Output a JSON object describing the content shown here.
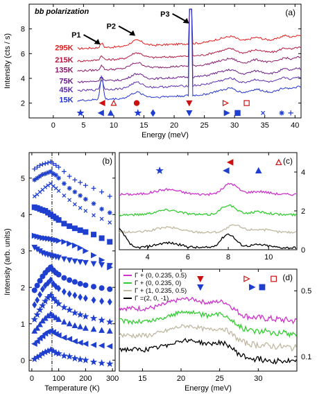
{
  "chart_data": [
    {
      "id": "a",
      "type": "line",
      "panel_label": "(a)",
      "title": "bb polarization",
      "xlabel": "Energy (meV)",
      "ylabel": "Intensity (cts / s)",
      "xlim": [
        -4,
        41
      ],
      "ylim": [
        0.8,
        10
      ],
      "xticks": [
        0,
        5,
        10,
        15,
        20,
        25,
        30,
        35,
        40
      ],
      "yticks": [
        2,
        4,
        6,
        8
      ],
      "series": [
        {
          "name": "295K",
          "color": "#e41a1c",
          "offset": 6.4
        },
        {
          "name": "215K",
          "color": "#b5163f",
          "offset": 5.4
        },
        {
          "name": "135K",
          "color": "#8a1a6a",
          "offset": 4.6
        },
        {
          "name": "75K",
          "color": "#6a1b8a",
          "offset": 3.7
        },
        {
          "name": "45K",
          "color": "#5a2bb0",
          "offset": 3.0
        },
        {
          "name": "15K",
          "color": "#2233cc",
          "offset": 2.2
        }
      ],
      "peaks": [
        {
          "label": "P1",
          "x": 8.0
        },
        {
          "label": "P2",
          "x": 13.8
        },
        {
          "label": "P3",
          "x": 22.7
        }
      ],
      "markers": [
        {
          "x": 4.5,
          "shape": "star",
          "color": "#1f3fcf",
          "filled": true
        },
        {
          "x": 7.9,
          "shape": "tri-left",
          "color": "#1f3fcf",
          "filled": true
        },
        {
          "x": 8.1,
          "shape": "tri-left",
          "color": "#cc1111",
          "filled": true
        },
        {
          "x": 9.5,
          "shape": "tri-up",
          "color": "#1f3fcf",
          "filled": true
        },
        {
          "x": 10.0,
          "shape": "tri-up",
          "color": "#cc1111",
          "filled": false
        },
        {
          "x": 13.8,
          "shape": "circle",
          "color": "#cc1111",
          "filled": true
        },
        {
          "x": 14.0,
          "shape": "plus-star",
          "color": "#1f3fcf",
          "filled": true
        },
        {
          "x": 16.5,
          "shape": "diamond",
          "color": "#1f3fcf",
          "filled": true
        },
        {
          "x": 22.5,
          "shape": "tri-down",
          "color": "#cc1111",
          "filled": true
        },
        {
          "x": 22.5,
          "shape": "tri-down",
          "color": "#1f3fcf",
          "filled": true
        },
        {
          "x": 28.5,
          "shape": "tri-right",
          "color": "#cc1111",
          "filled": false
        },
        {
          "x": 28.7,
          "shape": "tri-right",
          "color": "#1f3fcf",
          "filled": true
        },
        {
          "x": 30.5,
          "shape": "square",
          "color": "#1f3fcf",
          "filled": true
        },
        {
          "x": 32.0,
          "shape": "square",
          "color": "#cc1111",
          "filled": false
        },
        {
          "x": 34.7,
          "shape": "x",
          "color": "#1f3fcf",
          "filled": true
        },
        {
          "x": 37.8,
          "shape": "asterisk",
          "color": "#1f3fcf",
          "filled": true
        },
        {
          "x": 39.3,
          "shape": "plus",
          "color": "#1f3fcf",
          "filled": true
        }
      ]
    },
    {
      "id": "b",
      "type": "scatter",
      "panel_label": "(b)",
      "xlabel": "Temperature (K)",
      "ylabel": "Intensity (arb. units)",
      "xlim": [
        -10,
        310
      ],
      "ylim": [
        -0.3,
        5.7
      ],
      "xticks": [
        0,
        100,
        200,
        300
      ],
      "yticks": [
        0,
        1,
        2,
        3,
        4,
        5
      ],
      "vline_x": 75,
      "temperatures": [
        10,
        20,
        30,
        40,
        50,
        60,
        70,
        80,
        90,
        100,
        120,
        140,
        160,
        180,
        200,
        230,
        260,
        290
      ],
      "series": [
        {
          "marker": "star",
          "values": [
            0.03,
            0.08,
            0.12,
            0.18,
            0.22,
            0.25,
            0.28,
            0.25,
            0.2,
            0.18,
            0.12,
            0.1,
            0.05,
            0.02,
            0.0,
            -0.05,
            -0.08,
            -0.1
          ]
        },
        {
          "marker": "tri-left",
          "values": [
            0.45,
            0.52,
            0.6,
            0.66,
            0.73,
            0.78,
            0.8,
            0.77,
            0.72,
            0.68,
            0.62,
            0.58,
            0.52,
            0.48,
            0.45,
            0.42,
            0.4,
            0.38
          ]
        },
        {
          "marker": "tri-up",
          "values": [
            0.8,
            0.88,
            0.98,
            1.08,
            1.15,
            1.22,
            1.27,
            1.22,
            1.17,
            1.12,
            1.05,
            1.0,
            0.95,
            0.92,
            0.88,
            0.85,
            0.82,
            0.8
          ]
        },
        {
          "marker": "plus-star",
          "values": [
            1.12,
            1.25,
            1.38,
            1.5,
            1.62,
            1.72,
            1.78,
            1.7,
            1.62,
            1.55,
            1.45,
            1.38,
            1.3,
            1.25,
            1.2,
            1.15,
            1.1,
            1.05
          ]
        },
        {
          "marker": "diamond",
          "values": [
            1.52,
            1.65,
            1.8,
            1.95,
            2.05,
            2.12,
            2.2,
            2.1,
            2.02,
            1.97,
            1.88,
            1.82,
            1.78,
            1.73,
            1.7,
            1.65,
            1.62,
            1.6
          ]
        },
        {
          "marker": "circle",
          "values": [
            1.92,
            2.05,
            2.18,
            2.3,
            2.4,
            2.48,
            2.55,
            2.47,
            2.4,
            2.35,
            2.26,
            2.2,
            2.15,
            2.1,
            2.06,
            2.02,
            1.98,
            1.95
          ]
        },
        {
          "marker": "tri-down",
          "values": [
            3.1,
            3.05,
            3.0,
            2.95,
            2.92,
            2.9,
            2.88,
            2.86,
            2.84,
            2.82,
            2.78,
            2.75,
            2.72,
            2.7,
            2.68,
            2.65,
            2.62,
            2.6
          ]
        },
        {
          "marker": "tri-right",
          "values": [
            3.42,
            3.4,
            3.38,
            3.36,
            3.35,
            3.34,
            3.33,
            3.31,
            3.3,
            3.28,
            3.25,
            3.2,
            3.15,
            3.08,
            3.0,
            2.88,
            2.75,
            2.55
          ]
        },
        {
          "marker": "square",
          "values": [
            4.2,
            4.18,
            4.15,
            4.12,
            4.1,
            4.05,
            4.0,
            3.95,
            3.9,
            3.85,
            3.75,
            3.68,
            3.62,
            3.57,
            3.52,
            3.45,
            3.35,
            3.25
          ]
        },
        {
          "marker": "x",
          "values": [
            4.5,
            4.55,
            4.62,
            4.68,
            4.75,
            4.8,
            4.85,
            4.78,
            4.72,
            4.65,
            4.52,
            4.4,
            4.28,
            4.18,
            4.1,
            3.98,
            3.88,
            3.78
          ]
        },
        {
          "marker": "asterisk",
          "values": [
            4.95,
            5.0,
            5.05,
            5.1,
            5.12,
            5.15,
            5.18,
            5.12,
            5.08,
            5.0,
            4.85,
            4.72,
            4.62,
            4.52,
            4.42,
            4.3,
            4.15,
            4.05
          ]
        },
        {
          "marker": "plus",
          "values": [
            5.25,
            5.3,
            5.35,
            5.38,
            5.4,
            5.42,
            5.45,
            5.4,
            5.35,
            5.3,
            5.18,
            5.05,
            4.95,
            4.88,
            4.8,
            4.72,
            4.62,
            4.5
          ]
        }
      ]
    },
    {
      "id": "c",
      "type": "line",
      "panel_label": "(c)",
      "xlim": [
        2.6,
        11.4
      ],
      "ylim": [
        0,
        5
      ],
      "xticks": [
        4,
        6,
        8,
        10
      ],
      "yticks": [
        0,
        2,
        4
      ],
      "series": [
        {
          "color": "#cc33cc",
          "offset": 2.85,
          "peak_x": 8.1,
          "peak_h": 0.55
        },
        {
          "color": "#33cc33",
          "offset": 1.8,
          "peak_x": 8.0,
          "peak_h": 0.5
        },
        {
          "color": "#c0b8a0",
          "offset": 0.9,
          "peak_x": 8.3,
          "peak_h": 0.35
        },
        {
          "color": "#000000",
          "offset": 0.1,
          "peak_x": 8.0,
          "peak_h": 0.7
        }
      ],
      "markers": [
        {
          "x": 4.6,
          "shape": "star",
          "color": "#1f3fcf",
          "filled": true,
          "row": 1
        },
        {
          "x": 7.9,
          "shape": "tri-left",
          "color": "#1f3fcf",
          "filled": true,
          "row": 1
        },
        {
          "x": 8.1,
          "shape": "tri-left",
          "color": "#cc1111",
          "filled": true,
          "row": 0
        },
        {
          "x": 9.5,
          "shape": "tri-up",
          "color": "#1f3fcf",
          "filled": true,
          "row": 1
        },
        {
          "x": 10.5,
          "shape": "tri-up",
          "color": "#cc1111",
          "filled": false,
          "row": 0
        }
      ]
    },
    {
      "id": "d",
      "type": "line",
      "panel_label": "(d)",
      "xlabel": "Energy (meV)",
      "xlim": [
        12,
        35
      ],
      "ylim": [
        0.07,
        0.85
      ],
      "yscale": "log",
      "xticks": [
        15,
        20,
        25,
        30
      ],
      "yticks": [
        0.1,
        0.5
      ],
      "series": [
        {
          "name": "Γ + (0, 0.235, 0.5)",
          "color": "#cc33cc",
          "level": 0.33
        },
        {
          "name": "Γ + (0, 0.235, 0)",
          "color": "#33cc33",
          "level": 0.24
        },
        {
          "name": "Γ + (1, 0.235, 0.5)",
          "color": "#c0b8a0",
          "level": 0.17
        },
        {
          "name": "Γ =(2, 0, -1)",
          "color": "#000000",
          "level": 0.12
        }
      ],
      "markers": [
        {
          "x": 22.5,
          "shape": "tri-down",
          "color": "#cc1111",
          "filled": true,
          "row": 0
        },
        {
          "x": 22.5,
          "shape": "tri-down",
          "color": "#1f3fcf",
          "filled": true,
          "row": 1
        },
        {
          "x": 28.5,
          "shape": "tri-right",
          "color": "#cc1111",
          "filled": false,
          "row": 0
        },
        {
          "x": 29.2,
          "shape": "tri-right",
          "color": "#1f3fcf",
          "filled": true,
          "row": 1
        },
        {
          "x": 30.5,
          "shape": "square",
          "color": "#1f3fcf",
          "filled": true,
          "row": 1
        },
        {
          "x": 32.0,
          "shape": "square",
          "color": "#cc1111",
          "filled": false,
          "row": 0
        }
      ]
    }
  ]
}
